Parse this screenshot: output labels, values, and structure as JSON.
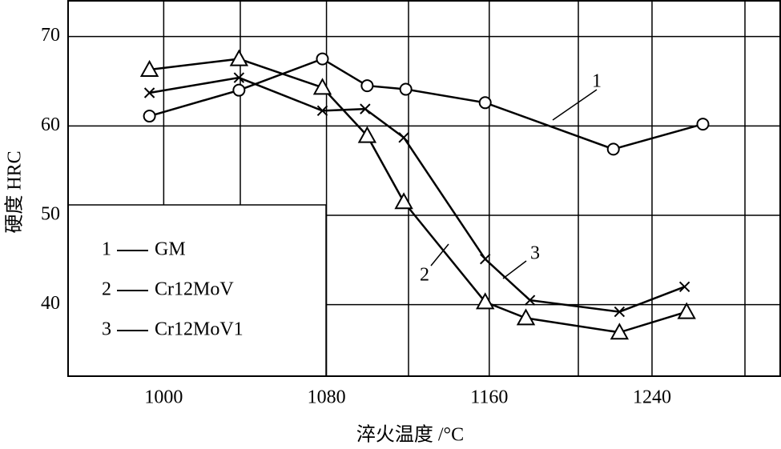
{
  "chart_data": {
    "type": "line",
    "xlabel": "淬火温度 /°C",
    "ylabel": "硬度 HRC",
    "xlim": [
      953,
      1303
    ],
    "ylim": [
      32,
      74
    ],
    "xticks": [
      1000,
      1080,
      1160,
      1240
    ],
    "yticks": [
      40,
      50,
      60,
      70
    ],
    "grid": true,
    "color": "#000000",
    "series": [
      {
        "label": "1",
        "name": "GM",
        "marker": "circle",
        "x": [
          993,
          1037,
          1078,
          1100,
          1119,
          1158,
          1221,
          1265
        ],
        "values": [
          61.1,
          64.0,
          67.5,
          64.5,
          64.1,
          62.6,
          57.4,
          60.2
        ]
      },
      {
        "label": "2",
        "name": "Cr12MoV",
        "marker": "triangle",
        "x": [
          993,
          1037,
          1078,
          1100,
          1118,
          1158,
          1178,
          1224,
          1257
        ],
        "values": [
          66.3,
          67.5,
          64.3,
          58.9,
          51.5,
          40.3,
          38.5,
          36.9,
          39.2
        ]
      },
      {
        "label": "3",
        "name": "Cr12MoV1",
        "marker": "cross",
        "x": [
          993,
          1037,
          1078,
          1099,
          1118,
          1158,
          1180,
          1224,
          1256
        ],
        "values": [
          63.7,
          65.4,
          61.7,
          61.9,
          58.7,
          45.1,
          40.5,
          39.2,
          42.0
        ]
      }
    ]
  }
}
